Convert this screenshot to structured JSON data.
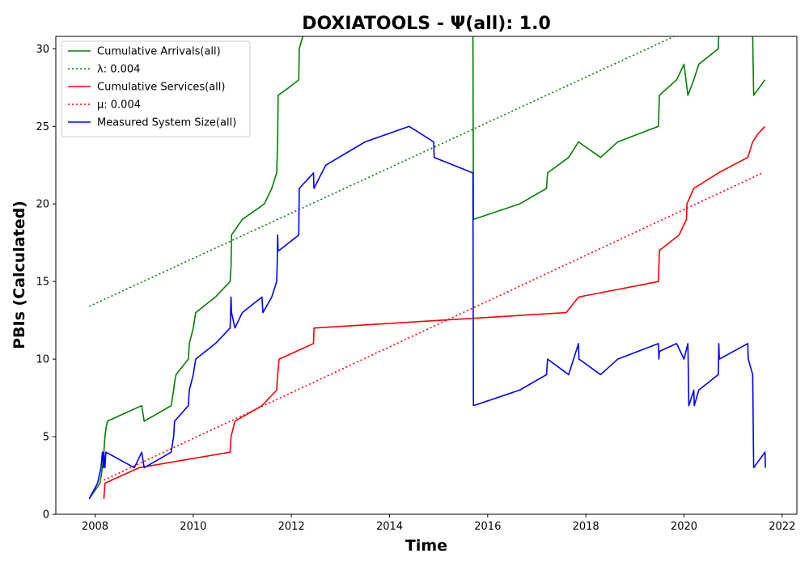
{
  "chart_data": {
    "type": "line",
    "title": "DOXIATOOLS -  Ψ(all): 1.0",
    "xlabel": "Time",
    "ylabel": "PBIs (Calculated)",
    "xlim": [
      2007.2,
      2022.3
    ],
    "ylim": [
      0,
      30.8
    ],
    "xticks": [
      2008,
      2010,
      2012,
      2014,
      2016,
      2018,
      2020,
      2022
    ],
    "yticks": [
      0,
      5,
      10,
      15,
      20,
      25,
      30
    ],
    "grid": false,
    "legend_position": "top-left",
    "series": [
      {
        "name": "Cumulative Arrivals(all)",
        "color": "#008000",
        "style": "solid",
        "x": [
          2007.88,
          2008.1,
          2008.15,
          2008.18,
          2008.2,
          2008.22,
          2008.25,
          2008.95,
          2009.0,
          2009.55,
          2009.6,
          2009.62,
          2009.65,
          2009.9,
          2009.92,
          2010.0,
          2010.05,
          2010.45,
          2010.75,
          2010.77,
          2010.78,
          2011.0,
          2011.45,
          2011.6,
          2011.7,
          2011.72,
          2011.73,
          2011.95,
          2012.15,
          2012.16,
          2012.25
        ],
        "y": [
          1,
          2,
          3,
          4,
          5,
          5.5,
          6,
          7,
          6,
          7,
          8,
          8.5,
          9,
          10,
          11,
          12,
          13,
          14,
          15,
          16,
          18,
          19,
          20,
          21,
          22,
          24,
          27,
          27.5,
          28,
          30,
          31
        ]
      },
      {
        "name": "Cumulative Arrivals(all)",
        "color": "#008000",
        "style": "solid",
        "x": [
          2015.7,
          2015.71,
          2016.65,
          2017.2,
          2017.22,
          2017.65,
          2017.85,
          2018.3,
          2018.65,
          2019.48,
          2019.49,
          2019.5,
          2019.85,
          2020.0,
          2020.08,
          2020.2,
          2020.3,
          2020.7,
          2020.71,
          2020.75
        ],
        "y": [
          31,
          19,
          20,
          21,
          22,
          23,
          24,
          23,
          24,
          25,
          26,
          27,
          28,
          29,
          27,
          28,
          29,
          30,
          30.9,
          31
        ]
      },
      {
        "name": "Cumulative Arrivals(all)",
        "color": "#008000",
        "style": "solid",
        "x": [
          2021.38,
          2021.4,
          2021.42,
          2021.65
        ],
        "y": [
          31,
          30.8,
          27,
          28
        ]
      },
      {
        "name": "λ: 0.004",
        "color": "#008000",
        "style": "dotted",
        "x": [
          2007.88,
          2019.8
        ],
        "y": [
          13.4,
          30.8
        ]
      },
      {
        "name": "Cumulative Services(all)",
        "color": "#ff0000",
        "style": "solid",
        "x": [
          2008.18,
          2008.2,
          2008.9,
          2010.75,
          2010.77,
          2010.85,
          2011.4,
          2011.7,
          2011.72,
          2011.75,
          2012.45,
          2012.46,
          2017.6,
          2017.85,
          2019.48,
          2019.49,
          2019.5,
          2019.9,
          2020.05,
          2020.06,
          2020.2,
          2020.7,
          2021.3,
          2021.4,
          2021.5,
          2021.65
        ],
        "y": [
          1,
          2,
          3,
          4,
          5,
          6,
          7,
          8,
          9,
          10,
          11,
          12,
          13,
          14,
          15,
          16,
          17,
          18,
          19,
          20,
          21,
          22,
          23,
          24,
          24.5,
          25
        ]
      },
      {
        "name": "μ: 0.004",
        "color": "#ff0000",
        "style": "dotted",
        "x": [
          2008.18,
          2021.6
        ],
        "y": [
          2.2,
          22
        ]
      },
      {
        "name": "Measured System Size(all)",
        "color": "#0000ff",
        "style": "solid",
        "x": [
          2007.88,
          2008.05,
          2008.12,
          2008.15,
          2008.17,
          2008.18,
          2008.2,
          2008.22,
          2008.8,
          2008.95,
          2009.0,
          2009.55,
          2009.6,
          2009.62,
          2009.9,
          2009.92,
          2010.0,
          2010.05,
          2010.45,
          2010.75,
          2010.77,
          2010.78,
          2010.85,
          2011.0,
          2011.4,
          2011.42,
          2011.6,
          2011.7,
          2011.71,
          2011.72,
          2011.73,
          2011.75,
          2011.95,
          2012.15,
          2012.16,
          2012.45,
          2012.46,
          2012.7,
          2013.5,
          2014.4,
          2014.9,
          2014.91,
          2015.7,
          2015.71
        ],
        "y": [
          1,
          2,
          3,
          4,
          3,
          4,
          3,
          4,
          3,
          4,
          3,
          4,
          5,
          6,
          7,
          8,
          9,
          10,
          11,
          12,
          14,
          13,
          12,
          13,
          14,
          13,
          14,
          15,
          16,
          18,
          17,
          17,
          17.5,
          18,
          21,
          22,
          21,
          22.5,
          24,
          25,
          24,
          23,
          22,
          7
        ]
      },
      {
        "name": "Measured System Size(all)",
        "color": "#0000ff",
        "style": "solid",
        "x": [
          2015.71,
          2016.65,
          2017.2,
          2017.22,
          2017.65,
          2017.85,
          2017.86,
          2018.3,
          2018.65,
          2019.48,
          2019.49,
          2019.5,
          2019.85,
          2020.0,
          2020.08,
          2020.1,
          2020.2,
          2020.21,
          2020.3,
          2020.7,
          2020.71,
          2020.72,
          2021.3,
          2021.31,
          2021.4,
          2021.42,
          2021.65,
          2021.66
        ],
        "y": [
          7,
          8,
          9,
          10,
          9,
          11,
          10,
          9,
          10,
          11,
          10,
          10.5,
          11,
          10,
          11,
          7,
          8,
          7,
          8,
          9,
          11,
          10,
          11,
          10,
          9,
          3,
          4,
          3
        ]
      }
    ],
    "legend": [
      {
        "label": "Cumulative Arrivals(all)",
        "color": "#008000",
        "style": "solid"
      },
      {
        "label": "λ: 0.004",
        "color": "#008000",
        "style": "dotted"
      },
      {
        "label": "Cumulative Services(all)",
        "color": "#ff0000",
        "style": "solid"
      },
      {
        "label": "μ: 0.004",
        "color": "#ff0000",
        "style": "dotted"
      },
      {
        "label": "Measured System Size(all)",
        "color": "#0000ff",
        "style": "solid"
      }
    ]
  }
}
